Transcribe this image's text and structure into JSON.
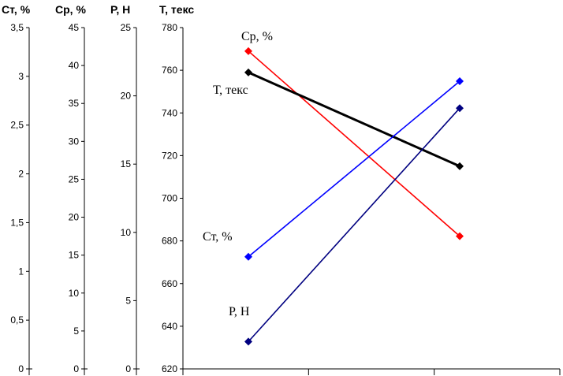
{
  "chart_data": {
    "type": "line",
    "x_ticks": 3,
    "axes": [
      {
        "id": "st",
        "title": "Ст, %",
        "range": [
          0,
          3.5
        ],
        "ticks": [
          "0",
          "0,5",
          "1",
          "1,5",
          "2",
          "2,5",
          "3",
          "3,5"
        ]
      },
      {
        "id": "sr",
        "title": "Ср, %",
        "range": [
          0,
          45
        ],
        "ticks": [
          "0",
          "5",
          "10",
          "15",
          "20",
          "25",
          "30",
          "35",
          "40",
          "45"
        ]
      },
      {
        "id": "p",
        "title": "Р, Н",
        "range": [
          0,
          25
        ],
        "ticks": [
          "0",
          "5",
          "10",
          "15",
          "20",
          "25"
        ]
      },
      {
        "id": "t",
        "title": "Т, текс",
        "range": [
          620,
          780
        ],
        "ticks": [
          "620",
          "640",
          "660",
          "680",
          "700",
          "720",
          "740",
          "760",
          "780"
        ]
      }
    ],
    "series": [
      {
        "name": "Ср, %",
        "axis": "sr",
        "color": "#ff0000",
        "values": [
          41.9,
          17.5
        ]
      },
      {
        "name": "Т, текс",
        "axis": "t",
        "color": "#000000",
        "values": [
          759,
          715
        ]
      },
      {
        "name": "Ст, %",
        "axis": "st",
        "color": "#0000ff",
        "values": [
          1.15,
          2.95
        ]
      },
      {
        "name": "Р, Н",
        "axis": "p",
        "color": "#000080",
        "values": [
          2.0,
          19.1
        ]
      }
    ]
  }
}
